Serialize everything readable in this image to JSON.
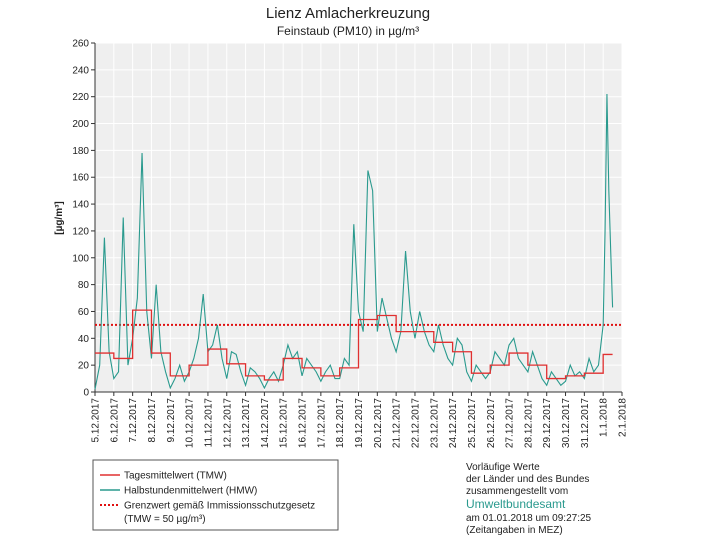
{
  "chart_data": {
    "type": "line",
    "title": "Lienz Amlacherkreuzung",
    "subtitle": "Feinstaub (PM10) in µg/m³",
    "y_label": "[µg/m³]",
    "xlim": [
      0,
      28
    ],
    "xticks": [
      {
        "value": 0,
        "label": "5.12.2017"
      },
      {
        "value": 1,
        "label": "6.12.2017"
      },
      {
        "value": 2,
        "label": "7.12.2017"
      },
      {
        "value": 3,
        "label": "8.12.2017"
      },
      {
        "value": 4,
        "label": "9.12.2017"
      },
      {
        "value": 5,
        "label": "10.12.2017"
      },
      {
        "value": 6,
        "label": "11.12.2017"
      },
      {
        "value": 7,
        "label": "12.12.2017"
      },
      {
        "value": 8,
        "label": "13.12.2017"
      },
      {
        "value": 9,
        "label": "14.12.2017"
      },
      {
        "value": 10,
        "label": "15.12.2017"
      },
      {
        "value": 11,
        "label": "16.12.2017"
      },
      {
        "value": 12,
        "label": "17.12.2017"
      },
      {
        "value": 13,
        "label": "18.12.2017"
      },
      {
        "value": 14,
        "label": "19.12.2017"
      },
      {
        "value": 15,
        "label": "20.12.2017"
      },
      {
        "value": 16,
        "label": "21.12.2017"
      },
      {
        "value": 17,
        "label": "22.12.2017"
      },
      {
        "value": 18,
        "label": "23.12.2017"
      },
      {
        "value": 19,
        "label": "24.12.2017"
      },
      {
        "value": 20,
        "label": "25.12.2017"
      },
      {
        "value": 21,
        "label": "26.12.2017"
      },
      {
        "value": 22,
        "label": "27.12.2017"
      },
      {
        "value": 23,
        "label": "28.12.2017"
      },
      {
        "value": 24,
        "label": "29.12.2017"
      },
      {
        "value": 25,
        "label": "30.12.2017"
      },
      {
        "value": 26,
        "label": "31.12.2017"
      },
      {
        "value": 27,
        "label": "1.1.2018"
      },
      {
        "value": 28,
        "label": "2.1.2018"
      }
    ],
    "ylim": [
      0,
      260
    ],
    "yticks": [
      0,
      20,
      40,
      60,
      80,
      100,
      120,
      140,
      160,
      180,
      200,
      220,
      240,
      260
    ],
    "grid": true,
    "series": [
      {
        "name": "Tagesmittelwert (TMW)",
        "color": "#e03030",
        "step": true,
        "x": [
          0,
          1,
          2,
          3,
          4,
          5,
          6,
          7,
          8,
          9,
          10,
          11,
          12,
          13,
          14,
          15,
          16,
          17,
          18,
          19,
          20,
          21,
          22,
          23,
          24,
          25,
          26,
          27
        ],
        "values": [
          29,
          25,
          61,
          29,
          12,
          20,
          32,
          21,
          12,
          9,
          25,
          18,
          12,
          18,
          54,
          57,
          45,
          45,
          37,
          30,
          14,
          20,
          29,
          20,
          10,
          12,
          14,
          28
        ]
      },
      {
        "name": "Halbstundenmittelwert (HMW)",
        "color": "#2a9a8e",
        "step": false,
        "x": [
          0,
          0.25,
          0.5,
          0.75,
          1,
          1.25,
          1.5,
          1.75,
          2,
          2.25,
          2.5,
          2.75,
          3,
          3.25,
          3.5,
          3.75,
          4,
          4.25,
          4.5,
          4.75,
          5,
          5.25,
          5.5,
          5.75,
          6,
          6.25,
          6.5,
          6.75,
          7,
          7.25,
          7.5,
          7.75,
          8,
          8.25,
          8.5,
          8.75,
          9,
          9.25,
          9.5,
          9.75,
          10,
          10.25,
          10.5,
          10.75,
          11,
          11.25,
          11.5,
          11.75,
          12,
          12.25,
          12.5,
          12.75,
          13,
          13.25,
          13.5,
          13.75,
          14,
          14.25,
          14.5,
          14.75,
          15,
          15.25,
          15.5,
          15.75,
          16,
          16.25,
          16.5,
          16.75,
          17,
          17.25,
          17.5,
          17.75,
          18,
          18.25,
          18.5,
          18.75,
          19,
          19.25,
          19.5,
          19.75,
          20,
          20.25,
          20.5,
          20.75,
          21,
          21.25,
          21.5,
          21.75,
          22,
          22.25,
          22.5,
          22.75,
          23,
          23.25,
          23.5,
          23.75,
          24,
          24.25,
          24.5,
          24.75,
          25,
          25.25,
          25.5,
          25.75,
          26,
          26.25,
          26.5,
          26.75,
          27,
          27.1,
          27.2,
          27.3,
          27.4,
          27.5
        ],
        "values": [
          2,
          20,
          115,
          30,
          10,
          15,
          130,
          20,
          40,
          70,
          178,
          60,
          25,
          80,
          30,
          15,
          3,
          10,
          20,
          8,
          15,
          25,
          40,
          73,
          30,
          35,
          50,
          25,
          10,
          30,
          28,
          15,
          5,
          18,
          15,
          10,
          3,
          10,
          15,
          8,
          20,
          35,
          25,
          30,
          12,
          25,
          20,
          15,
          8,
          15,
          20,
          10,
          10,
          25,
          20,
          125,
          60,
          45,
          165,
          150,
          45,
          70,
          55,
          40,
          30,
          45,
          105,
          60,
          40,
          60,
          45,
          35,
          30,
          50,
          35,
          25,
          20,
          40,
          35,
          15,
          8,
          20,
          15,
          10,
          15,
          30,
          25,
          20,
          35,
          40,
          25,
          20,
          15,
          30,
          20,
          10,
          5,
          15,
          10,
          5,
          8,
          20,
          12,
          15,
          10,
          25,
          15,
          20,
          50,
          120,
          222,
          150,
          105,
          63
        ]
      }
    ],
    "reference_line": {
      "name": "Grenzwert gemäß Immissionsschutzgesetz",
      "note": "(TMW = 50 µg/m³)",
      "value": 50,
      "color": "#e01010"
    },
    "footnote_lines": [
      "Vorläufige Werte",
      "der Länder und des Bundes",
      "zusammengestellt vom",
      "Umweltbundesamt",
      "am 01.01.2018 um 09:27:25",
      "(Zeitangaben in MEZ)"
    ]
  }
}
